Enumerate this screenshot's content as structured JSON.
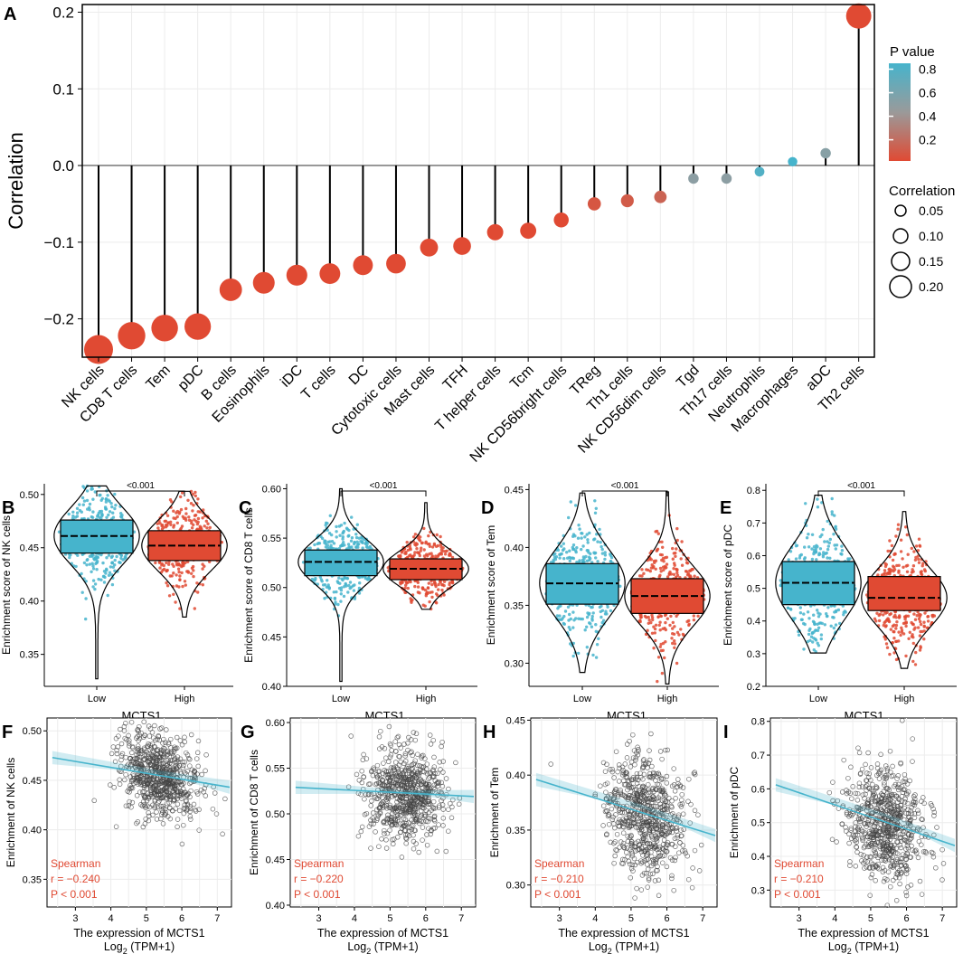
{
  "colors": {
    "blue": "#46b4cc",
    "red": "#e04a33",
    "grey": "#9a9a9a",
    "grid": "#ececec"
  },
  "panels": {
    "A": "A",
    "B": "B",
    "C": "C",
    "D": "D",
    "E": "E",
    "F": "F",
    "G": "G",
    "H": "H",
    "I": "I"
  },
  "chart_data": [
    {
      "id": "A",
      "type": "lollipop",
      "ylabel": "Correlation",
      "ylim": [
        -0.25,
        0.21
      ],
      "yticks": [
        "0.2",
        "0.1",
        "0.0",
        "−0.1",
        "−0.2"
      ],
      "ytick_values": [
        0.2,
        0.1,
        0.0,
        -0.1,
        -0.2
      ],
      "categories": [
        "NK cells",
        "CD8 T cells",
        "Tem",
        "pDC",
        "B cells",
        "Eosinophils",
        "iDC",
        "T cells",
        "DC",
        "Cytotoxic cells",
        "Mast cells",
        "TFH",
        "T helper cells",
        "Tcm",
        "NK CD56bright cells",
        "TReg",
        "Th1 cells",
        "NK CD56dim cells",
        "Tgd",
        "Th17 cells",
        "Neutrophils",
        "Macrophages",
        "aDC",
        "Th2 cells"
      ],
      "values": [
        -0.24,
        -0.222,
        -0.212,
        -0.21,
        -0.162,
        -0.153,
        -0.143,
        -0.141,
        -0.13,
        -0.128,
        -0.107,
        -0.105,
        -0.087,
        -0.085,
        -0.071,
        -0.05,
        -0.046,
        -0.041,
        -0.017,
        -0.017,
        -0.008,
        0.005,
        0.016,
        0.195
      ],
      "pvalues": [
        0.001,
        0.001,
        0.001,
        0.001,
        0.001,
        0.001,
        0.001,
        0.001,
        0.001,
        0.001,
        0.001,
        0.001,
        0.005,
        0.006,
        0.02,
        0.09,
        0.12,
        0.17,
        0.56,
        0.56,
        0.8,
        0.86,
        0.58,
        0.001
      ],
      "legend_p": {
        "title": "P value",
        "labels": [
          "0.8",
          "0.6",
          "0.4",
          "0.2"
        ],
        "values": [
          0.8,
          0.6,
          0.4,
          0.2
        ]
      },
      "legend_size": {
        "title": "Correlation",
        "labels": [
          "0.05",
          "0.10",
          "0.15",
          "0.20"
        ],
        "values": [
          0.05,
          0.1,
          0.15,
          0.2
        ]
      }
    },
    {
      "id": "B",
      "type": "violin-box",
      "ylabel": "Enrichment score of NK cells",
      "xlabel": "MCTS1",
      "categories": [
        "Low",
        "High"
      ],
      "ylim": [
        0.32,
        0.51
      ],
      "yticks": [
        0.35,
        0.4,
        0.45,
        0.5
      ],
      "ytick_labels": [
        "0.35",
        "0.40",
        "0.45",
        "0.50"
      ],
      "pvalue": "<0.001",
      "groups": [
        {
          "name": "Low",
          "min": 0.327,
          "q1": 0.445,
          "median": 0.461,
          "q3": 0.476,
          "max": 0.508
        },
        {
          "name": "High",
          "min": 0.385,
          "q1": 0.438,
          "median": 0.452,
          "q3": 0.466,
          "max": 0.503
        }
      ]
    },
    {
      "id": "C",
      "type": "violin-box",
      "ylabel": "Enrichment score of CD8 T cells",
      "xlabel": "MCTS1",
      "categories": [
        "Low",
        "High"
      ],
      "ylim": [
        0.4,
        0.605
      ],
      "yticks": [
        0.4,
        0.45,
        0.5,
        0.55,
        0.6
      ],
      "ytick_labels": [
        "0.40",
        "0.45",
        "0.50",
        "0.55",
        "0.60"
      ],
      "pvalue": "<0.001",
      "groups": [
        {
          "name": "Low",
          "min": 0.405,
          "q1": 0.512,
          "median": 0.526,
          "q3": 0.538,
          "max": 0.6
        },
        {
          "name": "High",
          "min": 0.478,
          "q1": 0.508,
          "median": 0.519,
          "q3": 0.529,
          "max": 0.586
        }
      ]
    },
    {
      "id": "D",
      "type": "violin-box",
      "ylabel": "Enrichment score of Tem",
      "xlabel": "MCTS1",
      "categories": [
        "Low",
        "High"
      ],
      "ylim": [
        0.28,
        0.455
      ],
      "yticks": [
        0.3,
        0.35,
        0.4,
        0.45
      ],
      "ytick_labels": [
        "0.30",
        "0.35",
        "0.40",
        "0.45"
      ],
      "pvalue": "<0.001",
      "groups": [
        {
          "name": "Low",
          "min": 0.292,
          "q1": 0.351,
          "median": 0.369,
          "q3": 0.386,
          "max": 0.447
        },
        {
          "name": "High",
          "min": 0.282,
          "q1": 0.343,
          "median": 0.358,
          "q3": 0.373,
          "max": 0.448
        }
      ]
    },
    {
      "id": "E",
      "type": "violin-box",
      "ylabel": "Enrichment score of pDC",
      "xlabel": "MCTS1",
      "categories": [
        "Low",
        "High"
      ],
      "ylim": [
        0.2,
        0.82
      ],
      "yticks": [
        0.2,
        0.3,
        0.4,
        0.5,
        0.6,
        0.7,
        0.8
      ],
      "ytick_labels": [
        "0.2",
        "0.3",
        "0.4",
        "0.5",
        "0.6",
        "0.7",
        "0.8"
      ],
      "pvalue": "<0.001",
      "groups": [
        {
          "name": "Low",
          "min": 0.302,
          "q1": 0.45,
          "median": 0.517,
          "q3": 0.582,
          "max": 0.785
        },
        {
          "name": "High",
          "min": 0.255,
          "q1": 0.432,
          "median": 0.471,
          "q3": 0.536,
          "max": 0.735
        }
      ]
    },
    {
      "id": "F",
      "type": "scatter",
      "ylabel": "Enrichment of NK cells",
      "xlabel": "The expression of MCTS1",
      "xlabel2": "Log",
      "xlim": [
        2.2,
        7.4
      ],
      "ylim": [
        0.322,
        0.513
      ],
      "xticks": [
        3,
        4,
        5,
        6,
        7
      ],
      "xtick_labels": [
        "3",
        "4",
        "5",
        "6",
        "7"
      ],
      "yticks": [
        0.35,
        0.4,
        0.45,
        0.5
      ],
      "ytick_labels": [
        "0.35",
        "0.40",
        "0.45",
        "0.50"
      ],
      "fit": {
        "x0": 2.35,
        "y0": 0.473,
        "x1": 7.35,
        "y1": 0.443
      },
      "center": {
        "x": 5.4,
        "y": 0.456
      },
      "spread": {
        "x": 0.55,
        "y": 0.021
      },
      "stats": [
        "Spearman",
        "r = −0.240",
        "P < 0.001"
      ]
    },
    {
      "id": "G",
      "type": "scatter",
      "ylabel": "Enrichment of CD8 T cells",
      "xlabel": "The expression of MCTS1",
      "xlabel2": "Log",
      "xlim": [
        2.2,
        7.4
      ],
      "ylim": [
        0.398,
        0.605
      ],
      "xticks": [
        3,
        4,
        5,
        6,
        7
      ],
      "xtick_labels": [
        "3",
        "4",
        "5",
        "6",
        "7"
      ],
      "yticks": [
        0.4,
        0.45,
        0.5,
        0.55,
        0.6
      ],
      "ytick_labels": [
        "0.40",
        "0.45",
        "0.50",
        "0.55",
        "0.60"
      ],
      "fit": {
        "x0": 2.35,
        "y0": 0.529,
        "x1": 7.35,
        "y1": 0.519
      },
      "center": {
        "x": 5.4,
        "y": 0.522
      },
      "spread": {
        "x": 0.55,
        "y": 0.024
      },
      "stats": [
        "Spearman",
        "r = −0.220",
        "P < 0.001"
      ]
    },
    {
      "id": "H",
      "type": "scatter",
      "ylabel": "Enrichment of Tem",
      "xlabel": "The expression of MCTS1",
      "xlabel2": "Log",
      "xlim": [
        2.2,
        7.4
      ],
      "ylim": [
        0.28,
        0.452
      ],
      "xticks": [
        3,
        4,
        5,
        6,
        7
      ],
      "xtick_labels": [
        "3",
        "4",
        "5",
        "6",
        "7"
      ],
      "yticks": [
        0.3,
        0.35,
        0.4,
        0.45
      ],
      "ytick_labels": [
        "0.30",
        "0.35",
        "0.40",
        "0.45"
      ],
      "fit": {
        "x0": 2.35,
        "y0": 0.396,
        "x1": 7.35,
        "y1": 0.345
      },
      "center": {
        "x": 5.4,
        "y": 0.365
      },
      "spread": {
        "x": 0.55,
        "y": 0.026
      },
      "stats": [
        "Spearman",
        "r = −0.210",
        "P < 0.001"
      ]
    },
    {
      "id": "I",
      "type": "scatter",
      "ylabel": "Enrichment of pDC",
      "xlabel": "The expression of MCTS1",
      "xlabel2": "Log",
      "xlim": [
        2.2,
        7.4
      ],
      "ylim": [
        0.25,
        0.81
      ],
      "xticks": [
        3,
        4,
        5,
        6,
        7
      ],
      "xtick_labels": [
        "3",
        "4",
        "5",
        "6",
        "7"
      ],
      "yticks": [
        0.3,
        0.4,
        0.5,
        0.6,
        0.7,
        0.8
      ],
      "ytick_labels": [
        "0.3",
        "0.4",
        "0.5",
        "0.6",
        "0.7",
        "0.8"
      ],
      "fit": {
        "x0": 2.35,
        "y0": 0.612,
        "x1": 7.35,
        "y1": 0.432
      },
      "center": {
        "x": 5.4,
        "y": 0.497
      },
      "spread": {
        "x": 0.55,
        "y": 0.085
      },
      "stats": [
        "Spearman",
        "r = −0.210",
        "P < 0.001"
      ]
    }
  ]
}
